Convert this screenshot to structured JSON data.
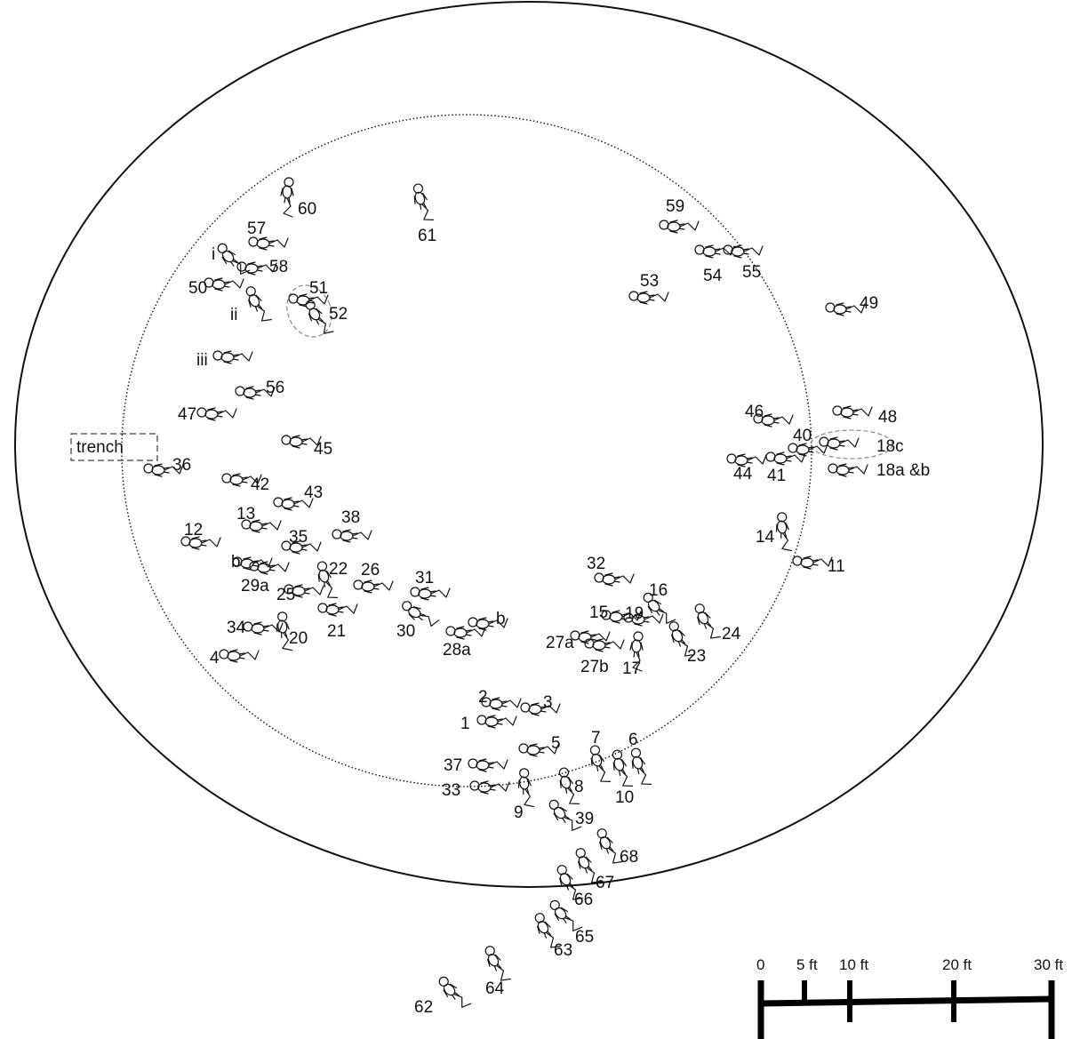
{
  "title": "",
  "trench_label": "trench",
  "burials": [
    {
      "id": "60",
      "label": "60"
    },
    {
      "id": "61",
      "label": "61"
    },
    {
      "id": "57",
      "label": "57"
    },
    {
      "id": "i",
      "label": "i"
    },
    {
      "id": "58",
      "label": "58"
    },
    {
      "id": "50",
      "label": "50"
    },
    {
      "id": "ii",
      "label": "ii"
    },
    {
      "id": "51",
      "label": "51"
    },
    {
      "id": "52",
      "label": "52"
    },
    {
      "id": "iii",
      "label": "iii"
    },
    {
      "id": "56",
      "label": "56"
    },
    {
      "id": "47",
      "label": "47"
    },
    {
      "id": "45",
      "label": "45"
    },
    {
      "id": "36",
      "label": "36"
    },
    {
      "id": "42",
      "label": "42"
    },
    {
      "id": "43",
      "label": "43"
    },
    {
      "id": "13",
      "label": "13"
    },
    {
      "id": "38",
      "label": "38"
    },
    {
      "id": "12",
      "label": "12"
    },
    {
      "id": "35",
      "label": "35"
    },
    {
      "id": "b1",
      "label": "b"
    },
    {
      "id": "29a",
      "label": "29a"
    },
    {
      "id": "22",
      "label": "22"
    },
    {
      "id": "26",
      "label": "26"
    },
    {
      "id": "25",
      "label": "25"
    },
    {
      "id": "21",
      "label": "21"
    },
    {
      "id": "31",
      "label": "31"
    },
    {
      "id": "34",
      "label": "34"
    },
    {
      "id": "20",
      "label": "20"
    },
    {
      "id": "4",
      "label": "4"
    },
    {
      "id": "30",
      "label": "30"
    },
    {
      "id": "28a",
      "label": "28a"
    },
    {
      "id": "b2",
      "label": "b"
    },
    {
      "id": "59",
      "label": "59"
    },
    {
      "id": "54",
      "label": "54"
    },
    {
      "id": "55",
      "label": "55"
    },
    {
      "id": "53",
      "label": "53"
    },
    {
      "id": "49",
      "label": "49"
    },
    {
      "id": "46",
      "label": "46"
    },
    {
      "id": "48",
      "label": "48"
    },
    {
      "id": "40",
      "label": "40"
    },
    {
      "id": "18c",
      "label": "18c"
    },
    {
      "id": "44",
      "label": "44"
    },
    {
      "id": "41",
      "label": "41"
    },
    {
      "id": "18ab",
      "label": "18a &b"
    },
    {
      "id": "14",
      "label": "14"
    },
    {
      "id": "11",
      "label": "11"
    },
    {
      "id": "32",
      "label": "32"
    },
    {
      "id": "16",
      "label": "16"
    },
    {
      "id": "15",
      "label": "15"
    },
    {
      "id": "19",
      "label": "19"
    },
    {
      "id": "24",
      "label": "24"
    },
    {
      "id": "27a",
      "label": "27a"
    },
    {
      "id": "23",
      "label": "23"
    },
    {
      "id": "27b",
      "label": "27b"
    },
    {
      "id": "17",
      "label": "17"
    },
    {
      "id": "2",
      "label": "2"
    },
    {
      "id": "3",
      "label": "3"
    },
    {
      "id": "1",
      "label": "1"
    },
    {
      "id": "7",
      "label": "7"
    },
    {
      "id": "6",
      "label": "6"
    },
    {
      "id": "5",
      "label": "5"
    },
    {
      "id": "37",
      "label": "37"
    },
    {
      "id": "33",
      "label": "33"
    },
    {
      "id": "8",
      "label": "8"
    },
    {
      "id": "10",
      "label": "10"
    },
    {
      "id": "9",
      "label": "9"
    },
    {
      "id": "39",
      "label": "39"
    },
    {
      "id": "68",
      "label": "68"
    },
    {
      "id": "67",
      "label": "67"
    },
    {
      "id": "66",
      "label": "66"
    },
    {
      "id": "65",
      "label": "65"
    },
    {
      "id": "63",
      "label": "63"
    },
    {
      "id": "64",
      "label": "64"
    },
    {
      "id": "62",
      "label": "62"
    }
  ],
  "scale": {
    "ticks": [
      {
        "label": "0",
        "value": 0
      },
      {
        "label": "5 ft",
        "value": 5
      },
      {
        "label": "10 ft",
        "value": 10
      },
      {
        "label": "20 ft",
        "value": 20
      },
      {
        "label": "30 ft",
        "value": 30
      }
    ]
  }
}
